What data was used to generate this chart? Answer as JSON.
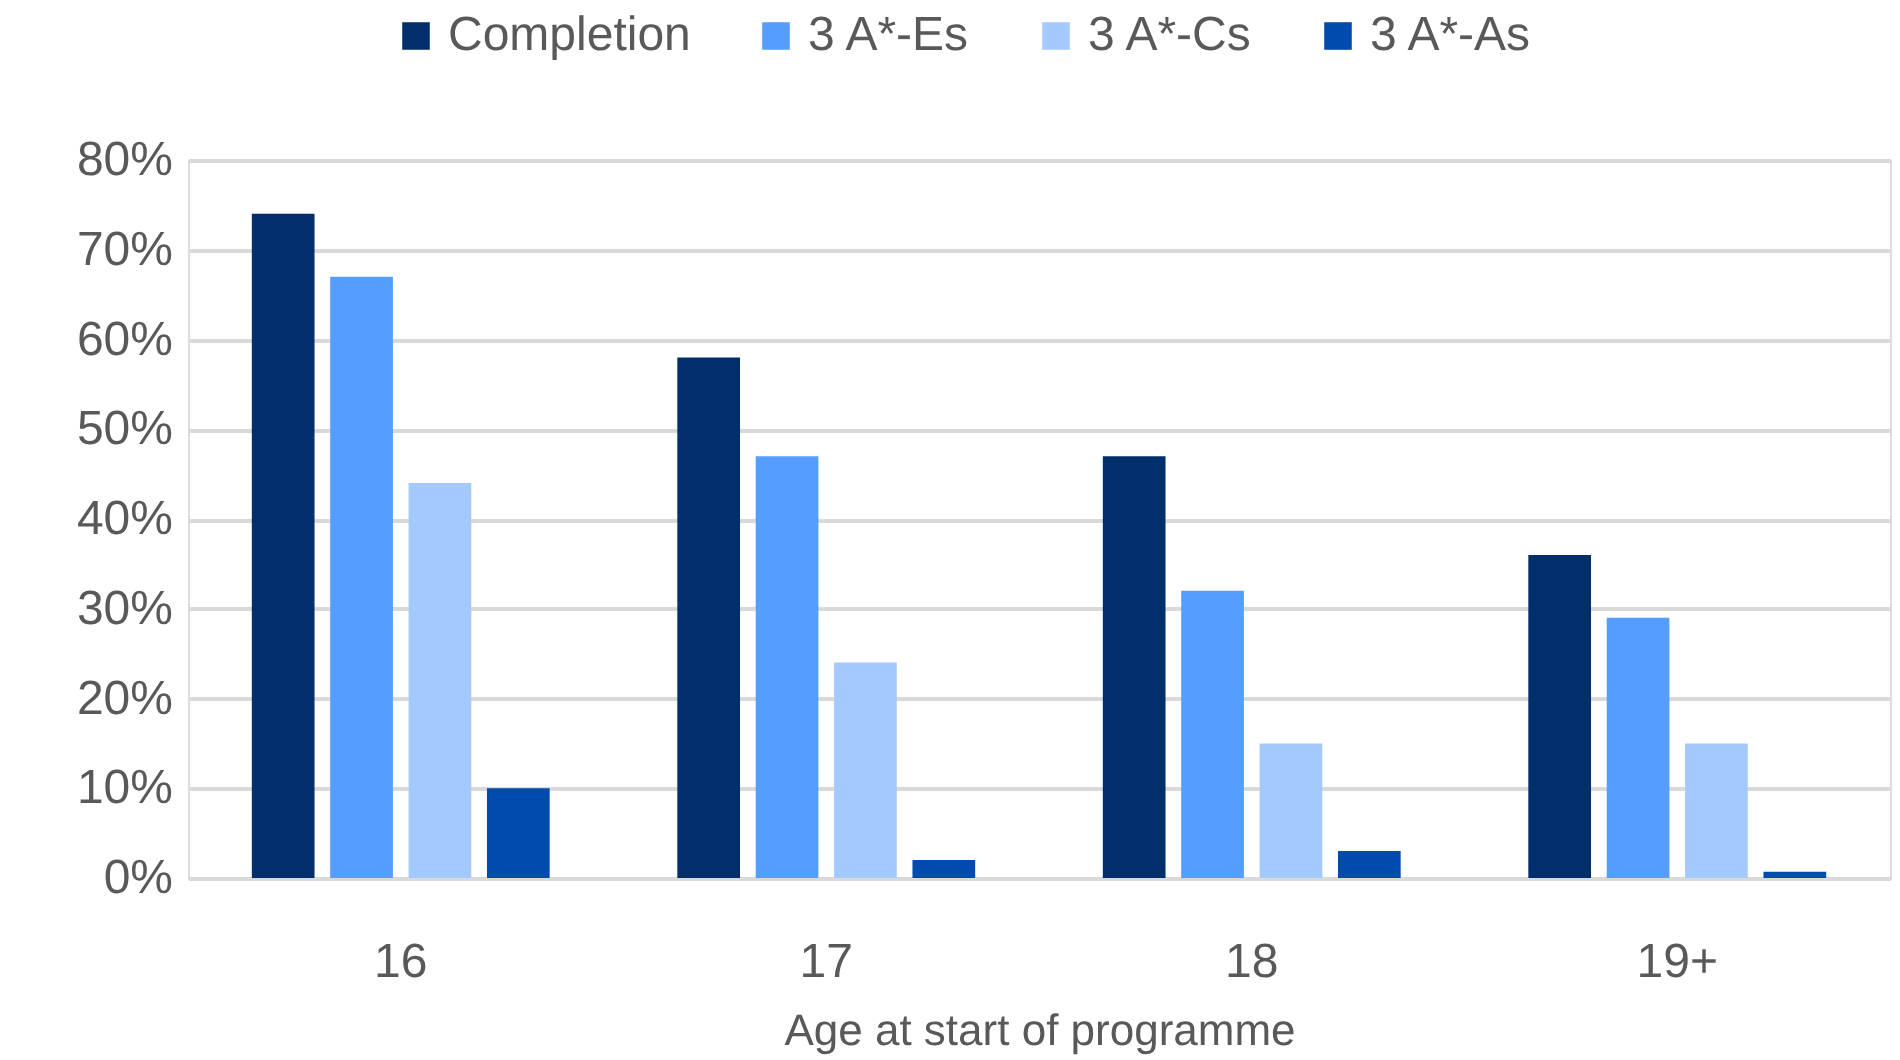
{
  "chart_data": {
    "type": "bar",
    "xlabel": "Age at start of programme",
    "categories": [
      "16",
      "17",
      "18",
      "19+"
    ],
    "series": [
      {
        "name": "Completion",
        "color": "#002f6c",
        "values": [
          74,
          58,
          47,
          36
        ]
      },
      {
        "name": "3 A*-Es",
        "color": "#559eff",
        "values": [
          67,
          47,
          32,
          29
        ]
      },
      {
        "name": "3 A*-Cs",
        "color": "#a4c9ff",
        "values": [
          44,
          24,
          15,
          15
        ]
      },
      {
        "name": "3 A*-As",
        "color": "#004bad",
        "values": [
          10,
          2,
          3,
          0.7
        ]
      }
    ],
    "ylim": [
      0,
      80
    ],
    "yticks": [
      {
        "value": 0,
        "label": "0%"
      },
      {
        "value": 10,
        "label": "10%"
      },
      {
        "value": 20,
        "label": "20%"
      },
      {
        "value": 30,
        "label": "30%"
      },
      {
        "value": 40,
        "label": "40%"
      },
      {
        "value": 50,
        "label": "50%"
      },
      {
        "value": 60,
        "label": "60%"
      },
      {
        "value": 70,
        "label": "70%"
      },
      {
        "value": 80,
        "label": "80%"
      }
    ],
    "grid": "y",
    "legend": "top"
  }
}
